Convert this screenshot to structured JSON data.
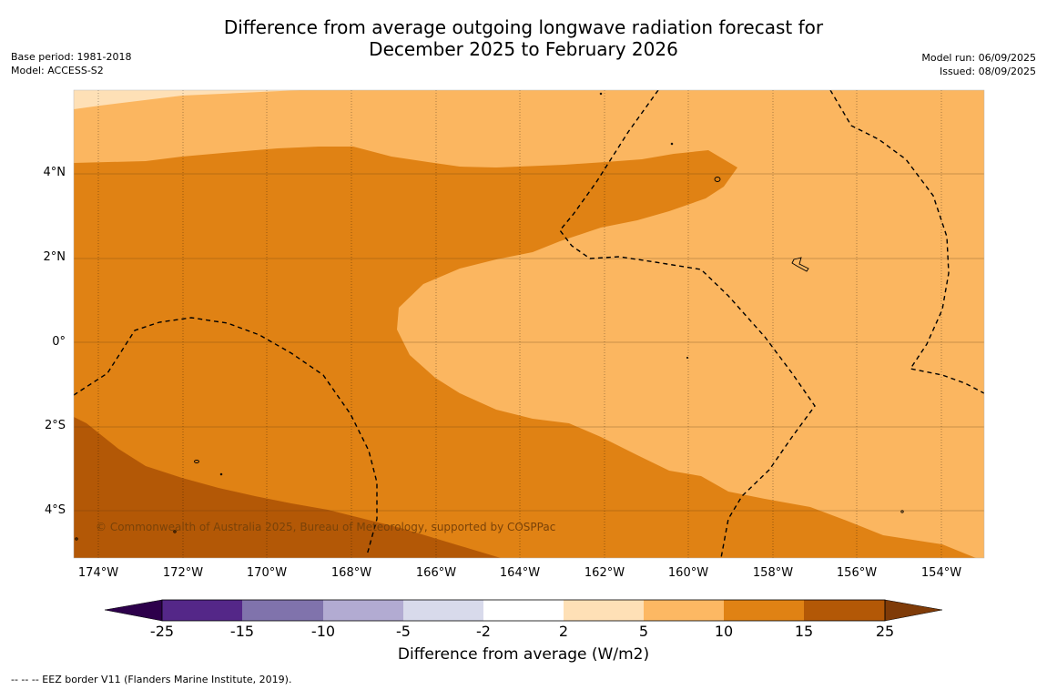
{
  "header": {
    "title_line1": "Difference from average outgoing longwave radiation forecast for",
    "title_line2": "December 2025 to February 2026",
    "base_period": "Base period: 1981-2018",
    "model": "Model: ACCESS-S2",
    "model_run": "Model run: 06/09/2025",
    "issued": "Issued: 08/09/2025"
  },
  "map": {
    "lat_labels": [
      "4°N",
      "2°N",
      "0°",
      "2°S",
      "4°S"
    ],
    "lon_labels": [
      "174°W",
      "172°W",
      "170°W",
      "168°W",
      "166°W",
      "164°W",
      "162°W",
      "160°W",
      "158°W",
      "156°W",
      "154°W"
    ],
    "copyright": "© Commonwealth of Australia 2025, Bureau of Meteorology, supported by COSPPac",
    "fill_colors": {
      "class_5_10": "#fbb660",
      "class_10_15": "#e08214",
      "class_15_25": "#b35806",
      "class_2_5": "#fee0b6"
    }
  },
  "colorbar": {
    "ticks": [
      "-25",
      "-15",
      "-10",
      "-5",
      "-2",
      "2",
      "5",
      "10",
      "15",
      "25"
    ],
    "colors": [
      "#2d004b",
      "#542788",
      "#8073ac",
      "#b2abd2",
      "#d8daeb",
      "#ffffff",
      "#fee0b6",
      "#fdb863",
      "#e08214",
      "#b35806",
      "#7f3b08"
    ],
    "label": "Difference from average (W/m2)"
  },
  "footnote": "--  --  -- EEZ border V11 (Flanders Marine Institute, 2019)."
}
